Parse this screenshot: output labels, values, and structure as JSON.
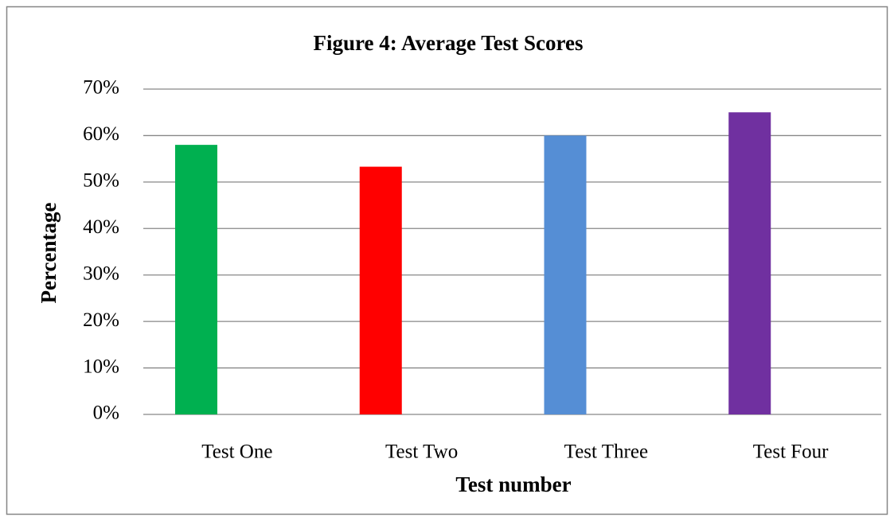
{
  "chart_data": {
    "type": "bar",
    "title": "Figure 4: Average Test Scores",
    "x_label": "Test number",
    "y_label": "Percentage",
    "categories": [
      "Test One",
      "Test Two",
      "Test Three",
      "Test Four"
    ],
    "values": [
      58,
      53.3,
      60,
      65
    ],
    "colors": [
      "#00b050",
      "#ff0000",
      "#558ed5",
      "#7030a0"
    ],
    "ylim": [
      0,
      70
    ],
    "yticks": [
      {
        "value": 0,
        "label": "0%"
      },
      {
        "value": 10,
        "label": "10%"
      },
      {
        "value": 20,
        "label": "20%"
      },
      {
        "value": 30,
        "label": "30%"
      },
      {
        "value": 40,
        "label": "40%"
      },
      {
        "value": 50,
        "label": "50%"
      },
      {
        "value": 60,
        "label": "60%"
      },
      {
        "value": 70,
        "label": "70%"
      }
    ],
    "grid": true
  }
}
